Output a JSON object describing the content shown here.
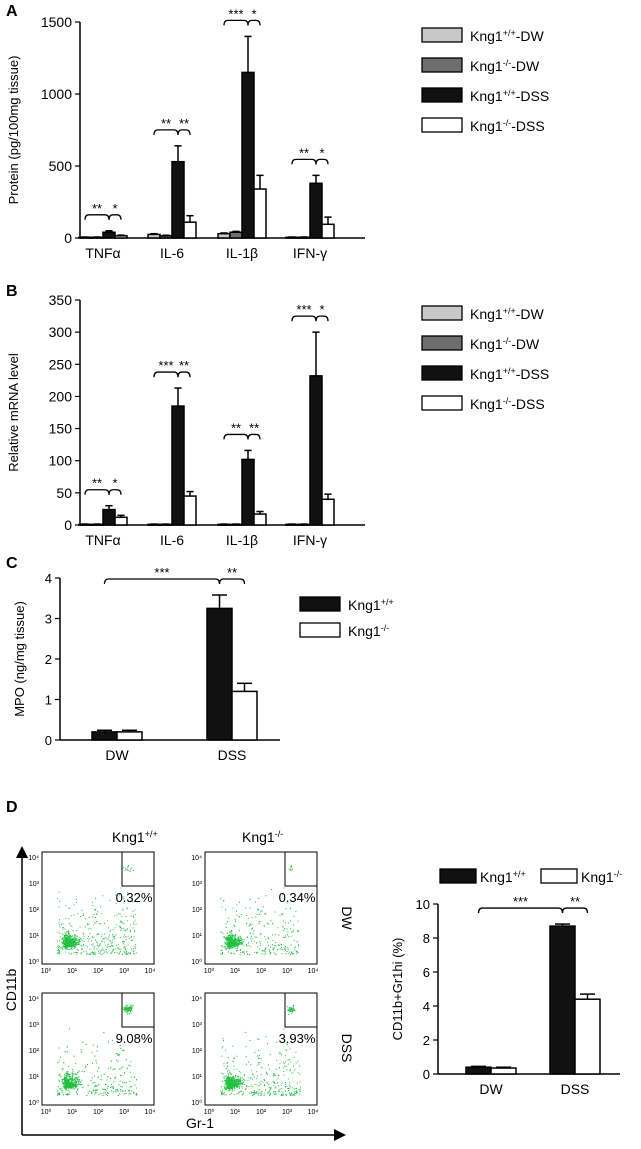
{
  "panels": {
    "A": {
      "label": "A"
    },
    "B": {
      "label": "B"
    },
    "C": {
      "label": "C"
    },
    "D": {
      "label": "D"
    }
  },
  "legend_ab": {
    "entries": [
      {
        "base": "Kng1",
        "sup": "+/+",
        "suffix": "-DW"
      },
      {
        "base": "Kng1",
        "sup": "-/-",
        "suffix": "-DW"
      },
      {
        "base": "Kng1",
        "sup": "+/+",
        "suffix": "-DSS"
      },
      {
        "base": "Kng1",
        "sup": "-/-",
        "suffix": "-DSS"
      }
    ]
  },
  "legend_cd": {
    "entries": [
      {
        "base": "Kng1",
        "sup": "+/+"
      },
      {
        "base": "Kng1",
        "sup": "-/-"
      }
    ]
  },
  "colors": {
    "kng_wt_dw": "#c8c8c8",
    "kng_ko_dw": "#6e6e6e",
    "kng_wt_dss": "#111111",
    "kng_ko_dss": "#ffffff",
    "flow_dots": "#22c043"
  },
  "chart_data": [
    {
      "id": "A",
      "type": "bar",
      "ylabel": "Protein (pg/100mg tissue)",
      "ylim": [
        0,
        1500
      ],
      "yticks": [
        0,
        500,
        1000,
        1500
      ],
      "categories": [
        "TNFα",
        "IL-6",
        "IL-1β",
        "IFN-γ"
      ],
      "series": [
        {
          "name": "Kng1+/+-DW",
          "values": [
            5,
            25,
            30,
            5
          ],
          "errors": [
            2,
            5,
            5,
            2
          ]
        },
        {
          "name": "Kng1-/--DW",
          "values": [
            5,
            15,
            40,
            5
          ],
          "errors": [
            2,
            4,
            6,
            2
          ]
        },
        {
          "name": "Kng1+/+-DSS",
          "values": [
            40,
            530,
            1150,
            380
          ],
          "errors": [
            10,
            110,
            250,
            55
          ]
        },
        {
          "name": "Kng1-/--DSS",
          "values": [
            15,
            110,
            340,
            95
          ],
          "errors": [
            5,
            45,
            95,
            50
          ]
        }
      ],
      "significance": [
        {
          "cat": 0,
          "from": 0,
          "to": 2,
          "label": "**"
        },
        {
          "cat": 0,
          "from": 2,
          "to": 3,
          "label": "*"
        },
        {
          "cat": 1,
          "from": 0,
          "to": 2,
          "label": "**"
        },
        {
          "cat": 1,
          "from": 2,
          "to": 3,
          "label": "**"
        },
        {
          "cat": 2,
          "from": 0,
          "to": 2,
          "label": "***"
        },
        {
          "cat": 2,
          "from": 2,
          "to": 3,
          "label": "*"
        },
        {
          "cat": 3,
          "from": 0,
          "to": 2,
          "label": "**"
        },
        {
          "cat": 3,
          "from": 2,
          "to": 3,
          "label": "*"
        }
      ]
    },
    {
      "id": "B",
      "type": "bar",
      "ylabel": "Relative mRNA level",
      "ylim": [
        0,
        350
      ],
      "yticks": [
        0,
        50,
        100,
        150,
        200,
        250,
        300,
        350
      ],
      "categories": [
        "TNFα",
        "IL-6",
        "IL-1β",
        "IFN-γ"
      ],
      "series": [
        {
          "name": "Kng1+/+-DW",
          "values": [
            1,
            1,
            1,
            1
          ],
          "errors": [
            0.5,
            0.5,
            0.5,
            0.5
          ]
        },
        {
          "name": "Kng1-/--DW",
          "values": [
            1,
            1,
            1,
            1
          ],
          "errors": [
            0.5,
            0.5,
            0.5,
            0.5
          ]
        },
        {
          "name": "Kng1+/+-DSS",
          "values": [
            24,
            185,
            102,
            232
          ],
          "errors": [
            6,
            28,
            14,
            68
          ]
        },
        {
          "name": "Kng1-/--DSS",
          "values": [
            12,
            45,
            17,
            40
          ],
          "errors": [
            3,
            7,
            4,
            8
          ]
        }
      ],
      "significance": [
        {
          "cat": 0,
          "from": 0,
          "to": 2,
          "label": "**"
        },
        {
          "cat": 0,
          "from": 2,
          "to": 3,
          "label": "*"
        },
        {
          "cat": 1,
          "from": 0,
          "to": 2,
          "label": "***"
        },
        {
          "cat": 1,
          "from": 2,
          "to": 3,
          "label": "**"
        },
        {
          "cat": 2,
          "from": 0,
          "to": 2,
          "label": "**"
        },
        {
          "cat": 2,
          "from": 2,
          "to": 3,
          "label": "**"
        },
        {
          "cat": 3,
          "from": 0,
          "to": 2,
          "label": "***"
        },
        {
          "cat": 3,
          "from": 2,
          "to": 3,
          "label": "*"
        }
      ]
    },
    {
      "id": "C",
      "type": "bar",
      "ylabel": "MPO (ng/mg tissue)",
      "ylim": [
        0,
        4
      ],
      "yticks": [
        0,
        1,
        2,
        3,
        4
      ],
      "categories": [
        "DW",
        "DSS"
      ],
      "series": [
        {
          "name": "Kng1+/+",
          "values": [
            0.2,
            3.25
          ],
          "errors": [
            0.04,
            0.33
          ]
        },
        {
          "name": "Kng1-/-",
          "values": [
            0.2,
            1.2
          ],
          "errors": [
            0.04,
            0.2
          ]
        }
      ],
      "significance": [
        {
          "from": [
            0,
            0
          ],
          "to": [
            1,
            0
          ],
          "label": "***"
        },
        {
          "from": [
            1,
            0
          ],
          "to": [
            1,
            1
          ],
          "label": "**"
        }
      ]
    },
    {
      "id": "D-bar",
      "type": "bar",
      "ylabel": "CD11b+Gr1hi (%)",
      "ylim": [
        0,
        10
      ],
      "yticks": [
        0,
        2,
        4,
        6,
        8,
        10
      ],
      "categories": [
        "DW",
        "DSS"
      ],
      "series": [
        {
          "name": "Kng1+/+",
          "values": [
            0.4,
            8.7
          ],
          "errors": [
            0.05,
            0.12
          ]
        },
        {
          "name": "Kng1-/-",
          "values": [
            0.35,
            4.4
          ],
          "errors": [
            0.05,
            0.3
          ]
        }
      ],
      "significance": [
        {
          "from": [
            0,
            0
          ],
          "to": [
            1,
            0
          ],
          "label": "***"
        },
        {
          "from": [
            1,
            0
          ],
          "to": [
            1,
            1
          ],
          "label": "**"
        }
      ]
    },
    {
      "id": "D-flow",
      "type": "scatter",
      "xlabel": "Gr-1",
      "ylabel": "CD11b",
      "col_titles": [
        {
          "base": "Kng1",
          "sup": "+/+"
        },
        {
          "base": "Kng1",
          "sup": "-/-"
        }
      ],
      "row_labels": [
        "DW",
        "DSS"
      ],
      "tick_labels": [
        "10⁰",
        "10¹",
        "10²",
        "10³",
        "10⁴"
      ],
      "gate_percentages": [
        [
          "0.32%",
          "0.34%"
        ],
        [
          "9.08%",
          "3.93%"
        ]
      ]
    }
  ]
}
